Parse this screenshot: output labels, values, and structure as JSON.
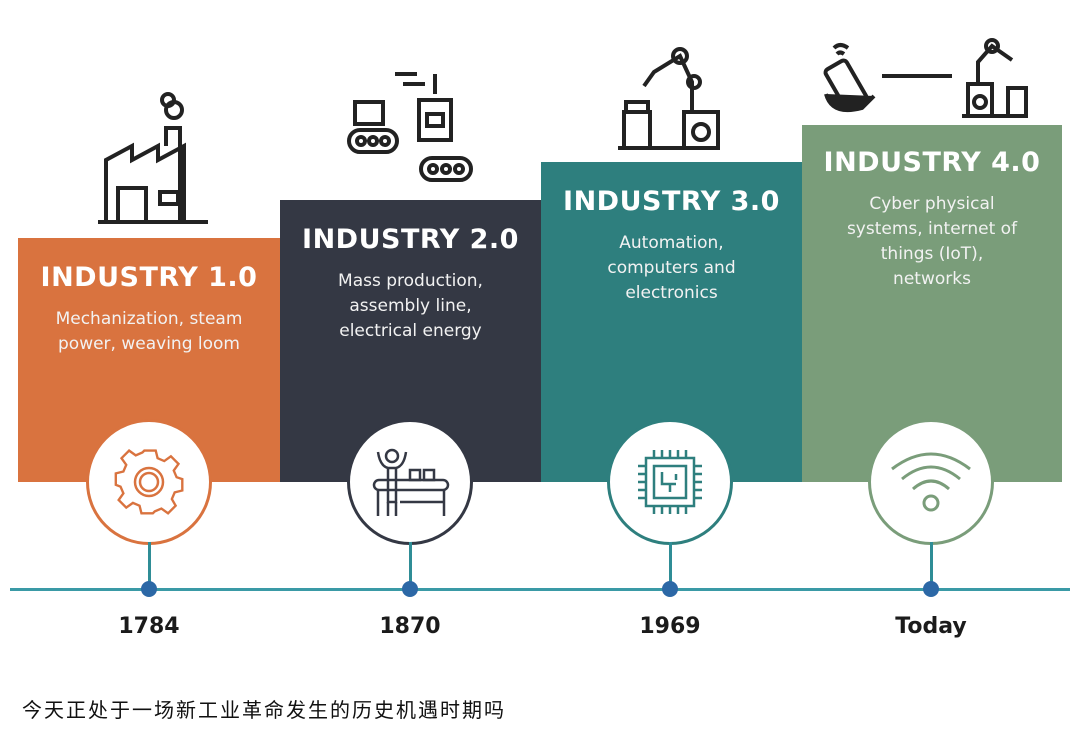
{
  "stages": [
    {
      "title": "INDUSTRY 1.0",
      "description": "Mechanization, steam power, weaving loom",
      "year": "1784",
      "color": "#d9733f",
      "icon": "gear-icon",
      "top_icon": "factory-icon"
    },
    {
      "title": "INDUSTRY 2.0",
      "description": "Mass production, assembly line, electrical energy",
      "year": "1870",
      "color": "#343844",
      "icon": "assembly-line-worker-icon",
      "top_icon": "conveyor-machine-icon"
    },
    {
      "title": "INDUSTRY 3.0",
      "description": "Automation, computers and electronics",
      "year": "1969",
      "color": "#2e7f7e",
      "icon": "microchip-icon",
      "top_icon": "robot-arm-icon"
    },
    {
      "title": "INDUSTRY 4.0",
      "description": "Cyber physical systems, internet of things (IoT), networks",
      "year": "Today",
      "color": "#7a9d7a",
      "icon": "wifi-icon",
      "top_icon": "phone-connected-robot-icon"
    }
  ],
  "timeline_color": "#3a9aa6",
  "caption": "今天正处于一场新工业革命发生的历史机遇时期吗"
}
